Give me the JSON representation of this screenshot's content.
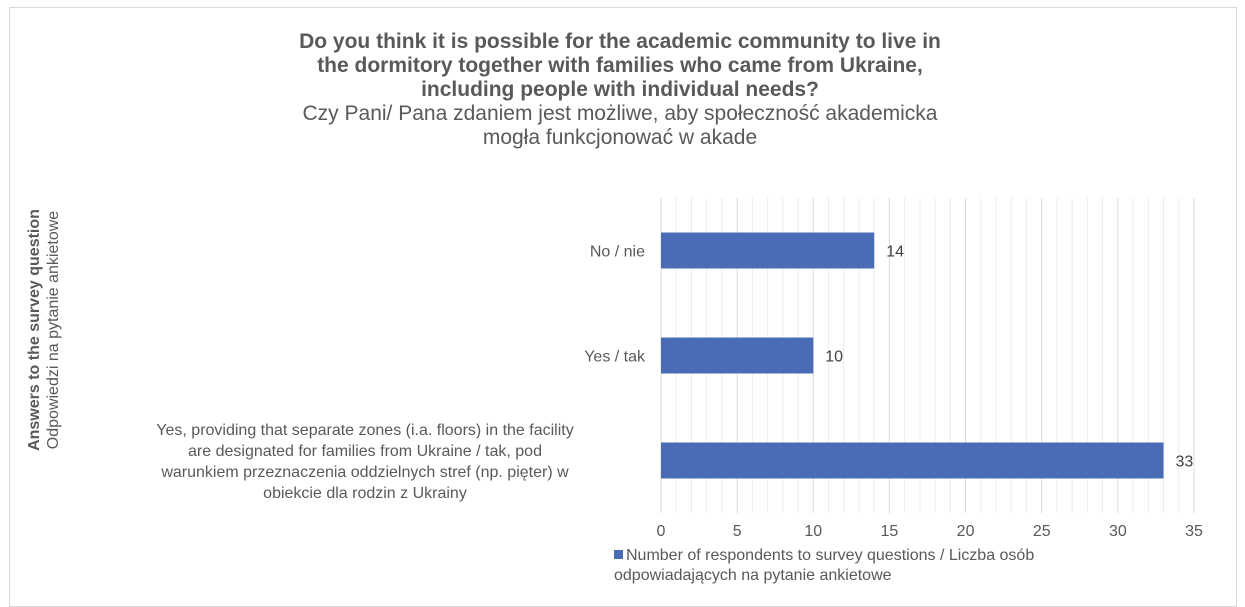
{
  "chart_data": {
    "type": "bar",
    "orientation": "horizontal",
    "title": "Do you think it is possible for the academic community to live in the dormitory together with families who came from Ukraine, including people with individual needs?",
    "title_lines": [
      "Do you think it is possible for the academic community to live in",
      "the dormitory together with families who came from Ukraine,",
      "including people with individual needs?"
    ],
    "subtitle_lines": [
      "Czy Pani/ Pana zdaniem jest możliwe, aby społeczność akademicka",
      "mogła funkcjonować w akade"
    ],
    "ylabel_lines": [
      "Answers to the survey question",
      "Odpowiedzi na pytanie ankietowe"
    ],
    "categories": [
      [
        "No / nie"
      ],
      [
        "Yes / tak"
      ],
      [
        "Yes, providing that separate zones (i.a. floors) in the facility",
        "are designated for families from Ukraine / tak, pod",
        "warunkiem przeznaczenia oddzielnych stref (np. pięter) w",
        "obiekcie dla rodzin z Ukrainy"
      ]
    ],
    "series": [
      {
        "name": "Number of respondents to survey questions / Liczba osób odpowiadających na pytanie ankietowe",
        "values": [
          14,
          10,
          33
        ],
        "color": "#4a6cb4"
      }
    ],
    "legend_lines": [
      "Number of respondents to survey questions / Liczba osób",
      "odpowiadających na pytanie ankietowe"
    ],
    "xlim": [
      0,
      35
    ],
    "xticks": [
      0,
      5,
      10,
      15,
      20,
      25,
      30,
      35
    ],
    "grid": true,
    "legend_position": "bottom"
  }
}
